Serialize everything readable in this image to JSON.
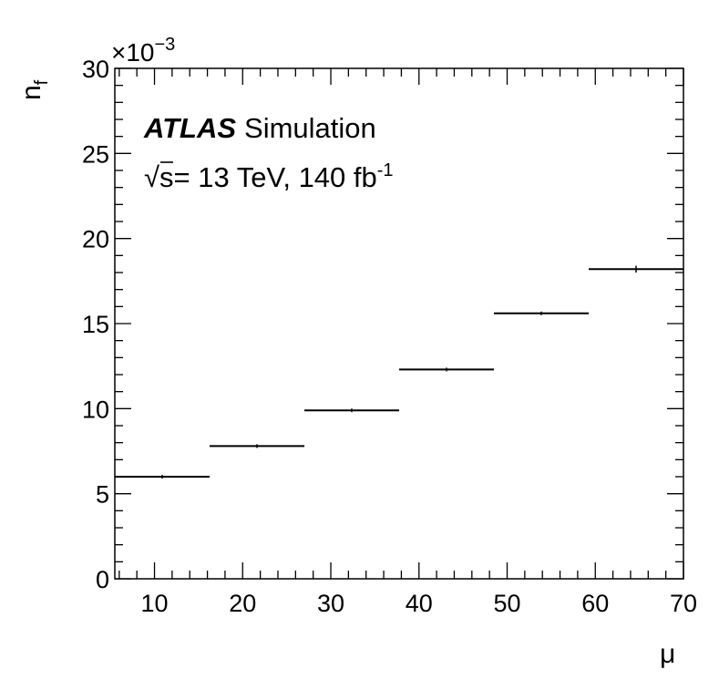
{
  "chart_data": {
    "type": "line",
    "style": "histogram-steps-with-error-bars",
    "xlabel": "μ",
    "ylabel_main": "n",
    "ylabel_sub": "f",
    "ylim": [
      0,
      0.03
    ],
    "xlim": [
      5.5,
      70
    ],
    "y_multiplier_base": "×10",
    "y_multiplier_exp": "−3",
    "x_ticks": [
      "10",
      "20",
      "30",
      "40",
      "50",
      "60",
      "70"
    ],
    "y_ticks": [
      "0",
      "5",
      "10",
      "15",
      "20",
      "25",
      "30"
    ],
    "bins": [
      {
        "xlow": 5.5,
        "xhigh": 16.25,
        "y": 0.006,
        "err": 5e-05
      },
      {
        "xlow": 16.25,
        "xhigh": 27.0,
        "y": 0.0078,
        "err": 3e-05
      },
      {
        "xlow": 27.0,
        "xhigh": 37.75,
        "y": 0.0099,
        "err": 3e-05
      },
      {
        "xlow": 37.75,
        "xhigh": 48.5,
        "y": 0.0123,
        "err": 3e-05
      },
      {
        "xlow": 48.5,
        "xhigh": 59.25,
        "y": 0.0156,
        "err": 5e-05
      },
      {
        "xlow": 59.25,
        "xhigh": 70.0,
        "y": 0.0182,
        "err": 0.0002
      }
    ],
    "grid": false
  },
  "annotation": {
    "atlas": "ATLAS",
    "simulation": "Simulation",
    "sqrt_symbol": "√",
    "energy_text": "s= 13 TeV, 140 fb",
    "lumi_exp": "-1"
  }
}
